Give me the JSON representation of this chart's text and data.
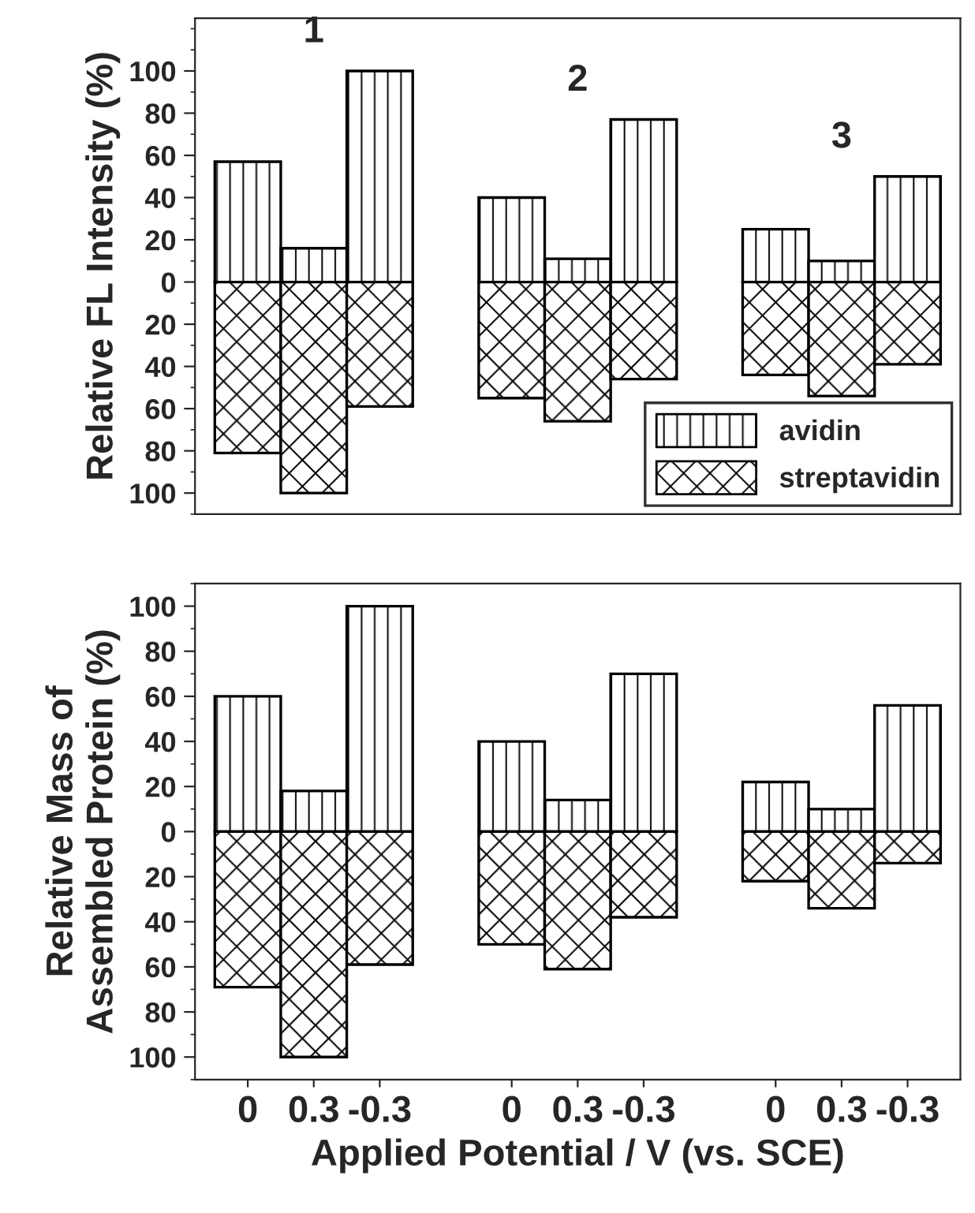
{
  "chart_data": [
    {
      "type": "bar",
      "ylabel": "Relative FL Intensity (%)",
      "categories": [
        "0",
        "0.3",
        "-0.3",
        null,
        "0",
        "0.3",
        "-0.3",
        null,
        "0",
        "0.3",
        "-0.3"
      ],
      "series": [
        {
          "name": "avidin",
          "color": "#000000",
          "values": [
            57,
            16,
            100,
            null,
            40,
            11,
            77,
            null,
            25,
            10,
            50
          ]
        },
        {
          "name": "streptavidin",
          "color": "#000000",
          "values": [
            -81,
            -100,
            -59,
            null,
            -55,
            -66,
            -46,
            null,
            -44,
            -54,
            -39
          ]
        }
      ],
      "stacked": true,
      "ylim": [
        -110,
        125
      ],
      "yticks": [
        {
          "value": -100,
          "label": "100"
        },
        {
          "value": -80,
          "label": "80"
        },
        {
          "value": -60,
          "label": "60"
        },
        {
          "value": -40,
          "label": "40"
        },
        {
          "value": -20,
          "label": "20"
        },
        0,
        20,
        40,
        60,
        80,
        100
      ],
      "annotations": [
        "1",
        "2",
        "3"
      ],
      "legend": "bottom right",
      "tick_labels": "y",
      "grid": false
    },
    {
      "type": "bar",
      "ylabel": "Relative Mass of\nAssembled Protein (%)",
      "xlabel": "Applied Potential / V (vs. SCE)",
      "categories": [
        "0",
        "0.3",
        "-0.3",
        null,
        "0",
        "0.3",
        "-0.3",
        null,
        "0",
        "0.3",
        "-0.3"
      ],
      "series": [
        {
          "color": "#000000",
          "values": [
            60,
            18,
            100,
            null,
            40,
            14,
            70,
            null,
            22,
            10,
            56
          ]
        },
        {
          "color": "#000000",
          "values": [
            -69,
            -100,
            -59,
            null,
            -50,
            -61,
            -38,
            null,
            -22,
            -34,
            -14
          ]
        }
      ],
      "stacked": true,
      "ylim": [
        -110,
        110
      ],
      "yticks": [
        {
          "value": -100,
          "label": "100"
        },
        {
          "value": -80,
          "label": "80"
        },
        {
          "value": -60,
          "label": "60"
        },
        {
          "value": -40,
          "label": "40"
        },
        {
          "value": -20,
          "label": "20"
        },
        0,
        20,
        40,
        60,
        80,
        100
      ],
      "grid": false
    }
  ]
}
